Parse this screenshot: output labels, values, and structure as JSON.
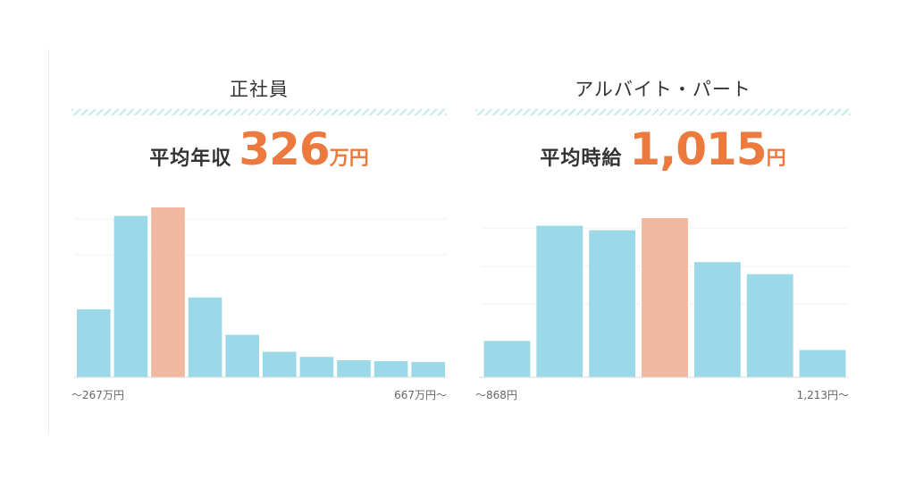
{
  "panels": [
    {
      "title": "正社員",
      "label": "平均年収",
      "value": "326",
      "unit": "万円",
      "chart": {
        "x_start_label": "～267万円",
        "x_end_label": "667万円～"
      }
    },
    {
      "title": "アルバイト・パート",
      "label": "平均時給",
      "value": "1,015",
      "unit": "円",
      "chart": {
        "x_start_label": "～868円",
        "x_end_label": "1,213円～"
      }
    }
  ],
  "colors": {
    "bar": "#9bd9e8",
    "highlight": "#f0b8a0",
    "accent": "#ec7a3f"
  },
  "chart_data": [
    {
      "type": "bar",
      "title": "正社員",
      "values": [
        40,
        95,
        100,
        47,
        25,
        15,
        12,
        10,
        9.5,
        9
      ],
      "highlight_index": 2,
      "ylim": [
        0,
        100
      ],
      "x_tick_labels": [
        "～267万円",
        "667万円～"
      ],
      "grid": true
    },
    {
      "type": "bar",
      "title": "アルバイト・パート",
      "values": [
        24,
        100,
        97,
        105,
        76,
        68,
        18
      ],
      "highlight_index": 3,
      "ylim": [
        0,
        105
      ],
      "x_tick_labels": [
        "～868円",
        "1,213円～"
      ],
      "grid": true
    }
  ]
}
